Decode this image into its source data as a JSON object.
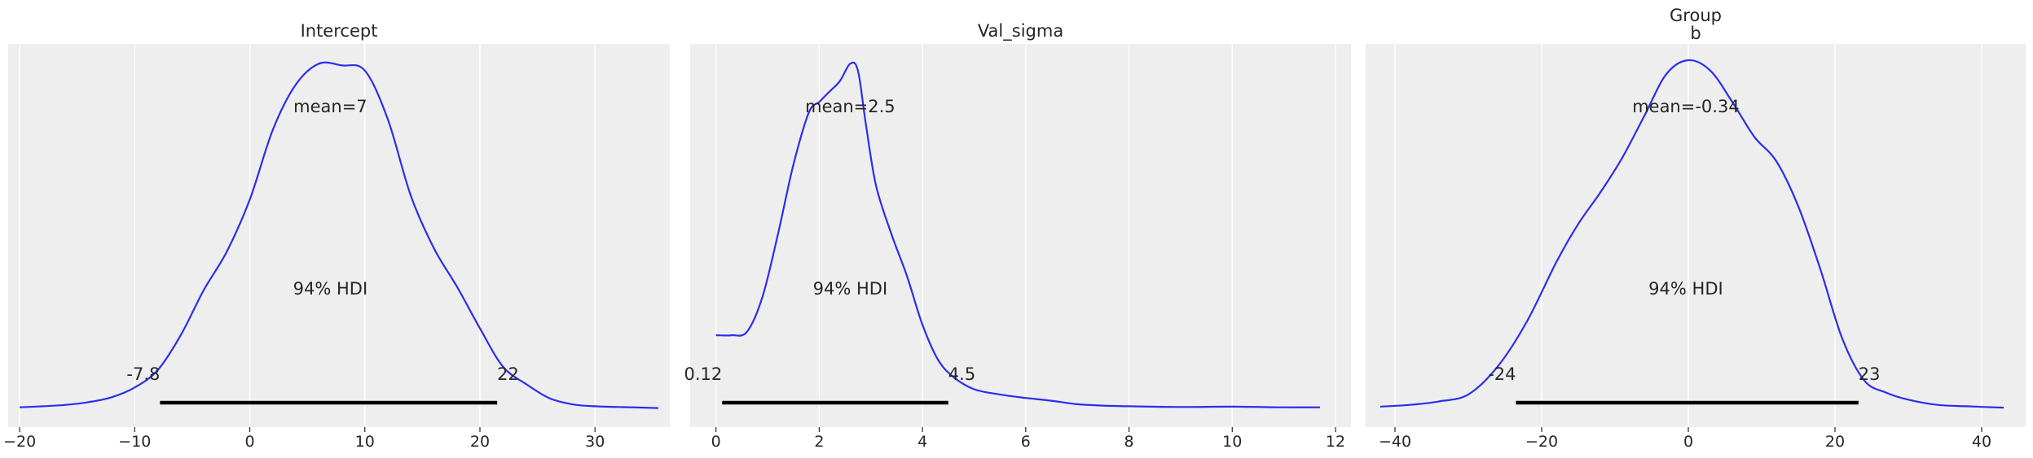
{
  "chart_data": [
    {
      "type": "line",
      "title": [
        "Intercept"
      ],
      "xlim": [
        -21,
        36.5
      ],
      "ticks": [
        -20,
        -10,
        0,
        10,
        20,
        30
      ],
      "tick_labels": [
        "−20",
        "−10",
        "0",
        "10",
        "20",
        "30"
      ],
      "mean_label": "mean=7",
      "mean_label_x": 7,
      "hdi_label": "94% HDI",
      "hdi": [
        -7.8,
        21.5
      ],
      "hdi_labels": [
        "-7.8",
        "22"
      ],
      "kde_x": [
        -20,
        -18,
        -16,
        -14,
        -12,
        -10,
        -8,
        -6,
        -4,
        -2,
        0,
        2,
        4,
        6,
        8,
        10,
        12,
        14,
        16,
        18,
        20,
        22,
        24,
        26,
        28,
        30,
        32,
        35.5
      ],
      "kde_y": [
        0.003,
        0.006,
        0.01,
        0.018,
        0.032,
        0.06,
        0.11,
        0.21,
        0.34,
        0.45,
        0.6,
        0.8,
        0.93,
        0.99,
        0.985,
        0.97,
        0.83,
        0.61,
        0.46,
        0.35,
        0.23,
        0.12,
        0.07,
        0.03,
        0.012,
        0.006,
        0.004,
        0.001
      ]
    },
    {
      "type": "line",
      "title": [
        "Val_sigma"
      ],
      "xlim": [
        -0.5,
        12.3
      ],
      "ticks": [
        0,
        2,
        4,
        6,
        8,
        10,
        12
      ],
      "tick_labels": [
        "0",
        "2",
        "4",
        "6",
        "8",
        "10",
        "12"
      ],
      "mean_label": "mean=2.5",
      "mean_label_x": 2.6,
      "hdi_label": "94% HDI",
      "hdi": [
        0.12,
        4.5
      ],
      "hdi_labels": [
        "0.12",
        "4.5"
      ],
      "kde_x": [
        0,
        0.3,
        0.6,
        0.9,
        1.2,
        1.5,
        1.8,
        2.0,
        2.2,
        2.4,
        2.6,
        2.75,
        2.9,
        3.1,
        3.4,
        3.7,
        4.0,
        4.3,
        4.6,
        5.0,
        5.5,
        6.0,
        6.5,
        7.0,
        7.5,
        8.0,
        9.0,
        10.0,
        11.0,
        11.7
      ],
      "kde_y": [
        0.21,
        0.21,
        0.22,
        0.32,
        0.5,
        0.7,
        0.85,
        0.88,
        0.91,
        0.94,
        0.99,
        0.97,
        0.82,
        0.64,
        0.5,
        0.38,
        0.24,
        0.14,
        0.09,
        0.055,
        0.04,
        0.03,
        0.022,
        0.012,
        0.008,
        0.006,
        0.004,
        0.005,
        0.003,
        0.003
      ]
    },
    {
      "type": "line",
      "title": [
        "Group",
        "b"
      ],
      "xlim": [
        -44,
        46
      ],
      "ticks": [
        -40,
        -20,
        0,
        20,
        40
      ],
      "tick_labels": [
        "−40",
        "−20",
        "0",
        "20",
        "40"
      ],
      "mean_label": "mean=-0.34",
      "mean_label_x": -0.34,
      "hdi_label": "94% HDI",
      "hdi": [
        -23.5,
        23.2
      ],
      "hdi_labels": [
        "-24",
        "23"
      ],
      "kde_x": [
        -42,
        -38,
        -34,
        -30,
        -26,
        -22,
        -18,
        -15,
        -12,
        -9,
        -6,
        -3,
        0,
        3,
        6,
        9,
        12,
        15,
        18,
        21,
        24,
        27,
        30,
        34,
        38,
        43
      ],
      "kde_y": [
        0.005,
        0.01,
        0.02,
        0.04,
        0.12,
        0.25,
        0.42,
        0.53,
        0.62,
        0.72,
        0.84,
        0.96,
        1.0,
        0.97,
        0.88,
        0.78,
        0.71,
        0.58,
        0.4,
        0.2,
        0.08,
        0.045,
        0.025,
        0.01,
        0.006,
        0.002
      ]
    }
  ]
}
